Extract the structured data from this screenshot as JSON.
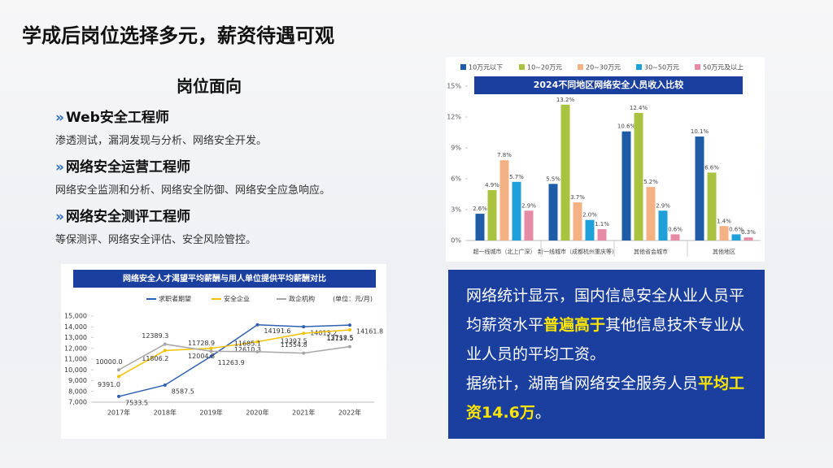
{
  "title": "学成后岗位选择多元，薪资待遇可观",
  "positions": {
    "heading": "岗位面向",
    "items": [
      {
        "name": "Web安全工程师",
        "desc": "渗透测试，漏洞发现与分析、网络安全开发。"
      },
      {
        "name": "网络安全运营工程师",
        "desc": "网络安全监测和分析、网络安全防御、网络安全应急响应。"
      },
      {
        "name": "网络安全测评工程师",
        "desc": "等保测评、网络安全评估、安全风险管控。"
      }
    ]
  },
  "summary": {
    "paragraphs": [
      {
        "before": "网络统计显示，国内信息安全从业人员平均薪资水平",
        "highlight": "普遍高于",
        "after": "其他信息技术专业从业人员的平均工资。"
      },
      {
        "before": "据统计，湖南省网络安全服务人员",
        "highlight": "平均工资14.6万",
        "after": "。"
      }
    ]
  },
  "chart_data": [
    {
      "type": "bar",
      "title": "2024不同地区网络安全人员收入比较",
      "categories": [
        "超一线城市（北上广深）",
        "新一线城市（成都杭州重庆等）",
        "其他省会城市",
        "其他地区"
      ],
      "series": [
        {
          "name": "10万元以下",
          "color": "#1f5ca8",
          "values": [
            2.6,
            5.5,
            10.6,
            10.1
          ],
          "value_labels": [
            "2.6%",
            "5.5%",
            "10.6%",
            "10.1%"
          ]
        },
        {
          "name": "10~20万元",
          "color": "#a9c23f",
          "values": [
            4.9,
            13.2,
            12.4,
            6.6
          ],
          "value_labels": [
            "4.9%",
            "13.2%",
            "12.4%",
            "6.6%"
          ]
        },
        {
          "name": "20~30万元",
          "color": "#f4b183",
          "values": [
            7.8,
            3.7,
            5.2,
            1.4
          ],
          "value_labels": [
            "7.8%",
            "3.7%",
            "5.2%",
            "1.4%"
          ]
        },
        {
          "name": "30~50万元",
          "color": "#1fa0d8",
          "values": [
            5.7,
            2.0,
            2.9,
            0.6
          ],
          "value_labels": [
            "5.7%",
            "2.0%",
            "2.9%",
            "0.6%"
          ]
        },
        {
          "name": "50万元及以上",
          "color": "#e68aa6",
          "values": [
            2.9,
            1.1,
            0.6,
            0.3
          ],
          "value_labels": [
            "2.9%",
            "1.1%",
            "0.6%",
            "0.3%"
          ]
        }
      ],
      "ylim": [
        0,
        15
      ],
      "yticks": [
        {
          "value": 0,
          "label": "0%"
        },
        {
          "value": 3,
          "label": "3%"
        },
        {
          "value": 6,
          "label": "6%"
        },
        {
          "value": 9,
          "label": "9%"
        },
        {
          "value": 12,
          "label": "12%"
        },
        {
          "value": 15,
          "label": "15%"
        }
      ],
      "legend": "top"
    },
    {
      "type": "line",
      "title": "网络安全人才渴望平均薪酬与用人单位提供平均薪酬对比",
      "note": "(单位：元/月)",
      "categories": [
        "2017年",
        "2018年",
        "2019年",
        "2020年",
        "2021年",
        "2022年"
      ],
      "series": [
        {
          "name": "求职者期望",
          "color": "#2e5fb0",
          "values": [
            7533.5,
            8587.5,
            11263.9,
            14191.6,
            14013.2,
            14161.8
          ],
          "value_labels": [
            "7533.5",
            "8587.5",
            "11263.9",
            "14191.6",
            "14013.2",
            "14161.8"
          ]
        },
        {
          "name": "安全企业",
          "color": "#f2c200",
          "values": [
            9391,
            11806.2,
            12004.8,
            12610.3,
            13397.5,
            13718.5
          ],
          "value_labels": [
            "9391.0",
            "11806.2",
            "12004.8",
            "12610.3",
            "13397.5",
            "13718.5"
          ]
        },
        {
          "name": "政企机构",
          "color": "#a6a6a6",
          "values": [
            10000,
            12389.3,
            11728.9,
            11685.1,
            11554.8,
            12157.5
          ],
          "value_labels": [
            "10000.0",
            "12389.3",
            "11728.9",
            "11685.1",
            "11554.8",
            "12157.5"
          ]
        }
      ],
      "ylim": [
        7000,
        15000
      ],
      "yticks": [
        {
          "value": 7000,
          "label": "7,000"
        },
        {
          "value": 8000,
          "label": "8,000"
        },
        {
          "value": 9000,
          "label": "9,000"
        },
        {
          "value": 10000,
          "label": "10,000"
        },
        {
          "value": 11000,
          "label": "11,000"
        },
        {
          "value": 12000,
          "label": "12,000"
        },
        {
          "value": 13000,
          "label": "13,000"
        },
        {
          "value": 14000,
          "label": "14,000"
        },
        {
          "value": 15000,
          "label": "15,000"
        }
      ],
      "legend": "top"
    }
  ]
}
